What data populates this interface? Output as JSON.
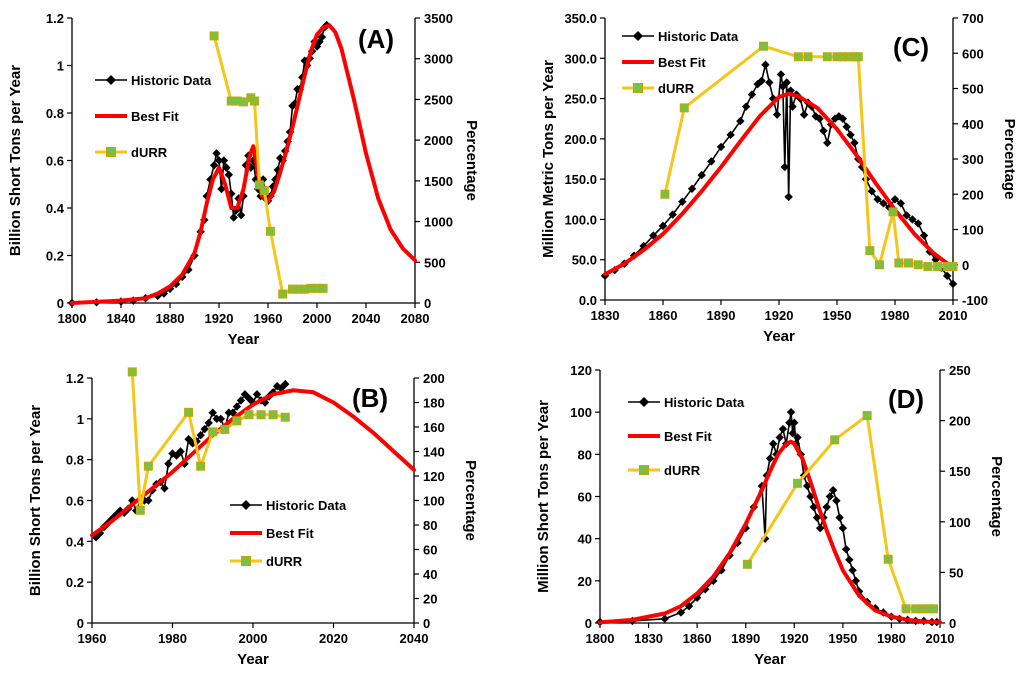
{
  "chart_data": [
    {
      "id": "A",
      "type": "line",
      "panel_label": "(A)",
      "xlabel": "Year",
      "ylabel": "Billion Short Tons per Year",
      "y2label": "Percentage",
      "xlim": [
        1800,
        2080
      ],
      "ylim": [
        0,
        1.2
      ],
      "y2lim": [
        0,
        3500
      ],
      "x_ticks": [
        1800,
        1840,
        1880,
        1920,
        1960,
        2000,
        2040,
        2080
      ],
      "y_ticks": [
        "0",
        "0.2",
        "0.4",
        "0.6",
        "0.8",
        "1",
        "1.2"
      ],
      "y2_ticks": [
        "0",
        "500",
        "1000",
        "1500",
        "2000",
        "2500",
        "3000",
        "3500"
      ],
      "legend": [
        "Historic Data",
        "Best Fit",
        "dURR"
      ],
      "legend_placement": "left-middle",
      "colors": {
        "historic": "#000000",
        "fit": "#ff0000",
        "durr": "#f5c518",
        "durr_marker": "#7ac143"
      },
      "series": [
        {
          "name": "Historic Data",
          "axis": "left",
          "x": [
            1800,
            1820,
            1840,
            1850,
            1860,
            1870,
            1875,
            1880,
            1885,
            1890,
            1895,
            1900,
            1905,
            1908,
            1910,
            1913,
            1916,
            1918,
            1920,
            1922,
            1924,
            1926,
            1928,
            1930,
            1932,
            1934,
            1936,
            1938,
            1940,
            1942,
            1944,
            1946,
            1948,
            1950,
            1952,
            1954,
            1956,
            1958,
            1960,
            1962,
            1964,
            1966,
            1968,
            1970,
            1972,
            1974,
            1976,
            1978,
            1980,
            1982,
            1984,
            1986,
            1988,
            1990,
            1992,
            1994,
            1996,
            1998,
            2000,
            2002,
            2004,
            2006,
            2008
          ],
          "y": [
            0.0,
            0.003,
            0.006,
            0.01,
            0.02,
            0.03,
            0.04,
            0.06,
            0.08,
            0.11,
            0.14,
            0.2,
            0.3,
            0.35,
            0.45,
            0.52,
            0.58,
            0.63,
            0.6,
            0.48,
            0.6,
            0.57,
            0.54,
            0.46,
            0.36,
            0.39,
            0.44,
            0.37,
            0.45,
            0.58,
            0.62,
            0.57,
            0.6,
            0.52,
            0.48,
            0.45,
            0.52,
            0.44,
            0.43,
            0.45,
            0.49,
            0.52,
            0.56,
            0.61,
            0.6,
            0.64,
            0.68,
            0.72,
            0.83,
            0.84,
            0.9,
            0.9,
            0.95,
            1.02,
            1.0,
            1.03,
            1.06,
            1.1,
            1.08,
            1.1,
            1.12,
            1.16,
            1.17
          ]
        },
        {
          "name": "Best Fit",
          "axis": "left",
          "x": [
            1800,
            1820,
            1840,
            1860,
            1870,
            1880,
            1890,
            1900,
            1905,
            1910,
            1915,
            1920,
            1925,
            1930,
            1935,
            1940,
            1945,
            1948,
            1950,
            1955,
            1960,
            1965,
            1970,
            1975,
            1980,
            1985,
            1990,
            1995,
            2000,
            2005,
            2010,
            2015,
            2020,
            2030,
            2040,
            2050,
            2060,
            2070,
            2080
          ],
          "y": [
            0.0,
            0.005,
            0.01,
            0.02,
            0.04,
            0.07,
            0.12,
            0.21,
            0.3,
            0.42,
            0.52,
            0.57,
            0.5,
            0.4,
            0.4,
            0.48,
            0.62,
            0.66,
            0.6,
            0.45,
            0.43,
            0.47,
            0.55,
            0.64,
            0.74,
            0.85,
            0.96,
            1.06,
            1.13,
            1.16,
            1.17,
            1.14,
            1.07,
            0.86,
            0.63,
            0.44,
            0.31,
            0.23,
            0.18
          ]
        },
        {
          "name": "dURR",
          "axis": "right",
          "x": [
            1916,
            1930,
            1935,
            1940,
            1946,
            1949,
            1953,
            1957,
            1962,
            1972,
            1980,
            1985,
            1990,
            1995,
            2000,
            2005
          ],
          "y": [
            3280,
            2480,
            2480,
            2470,
            2520,
            2480,
            1450,
            1380,
            880,
            110,
            170,
            170,
            170,
            180,
            180,
            180
          ]
        }
      ]
    },
    {
      "id": "B",
      "type": "line",
      "panel_label": "(B)",
      "xlabel": "Year",
      "ylabel": "Billion Short Tons per Year",
      "y2label": "Percentage",
      "xlim": [
        1960,
        2040
      ],
      "ylim": [
        0,
        1.2
      ],
      "y2lim": [
        0,
        200
      ],
      "x_ticks": [
        1960,
        1980,
        2000,
        2020,
        2040
      ],
      "y_ticks": [
        "0",
        "0.2",
        "0.4",
        "0.6",
        "0.8",
        "1",
        "1.2"
      ],
      "y2_ticks": [
        "0",
        "20",
        "40",
        "60",
        "80",
        "100",
        "120",
        "140",
        "160",
        "180",
        "200"
      ],
      "legend": [
        "Historic Data",
        "Best Fit",
        "dURR"
      ],
      "legend_placement": "bottom-center",
      "colors": {
        "historic": "#000000",
        "fit": "#ff0000",
        "durr": "#f5c518",
        "durr_marker": "#7ac143"
      },
      "series": [
        {
          "name": "Historic Data",
          "axis": "left",
          "x": [
            1961,
            1962,
            1963,
            1964,
            1965,
            1966,
            1967,
            1968,
            1969,
            1970,
            1971,
            1972,
            1973,
            1974,
            1975,
            1976,
            1977,
            1978,
            1979,
            1980,
            1981,
            1982,
            1983,
            1984,
            1985,
            1986,
            1987,
            1988,
            1989,
            1990,
            1991,
            1992,
            1993,
            1994,
            1995,
            1996,
            1997,
            1998,
            1999,
            2000,
            2001,
            2002,
            2003,
            2004,
            2005,
            2006,
            2007,
            2008
          ],
          "y": [
            0.42,
            0.44,
            0.47,
            0.49,
            0.51,
            0.53,
            0.55,
            0.54,
            0.56,
            0.6,
            0.55,
            0.6,
            0.6,
            0.6,
            0.65,
            0.68,
            0.69,
            0.66,
            0.78,
            0.83,
            0.82,
            0.84,
            0.78,
            0.9,
            0.88,
            0.89,
            0.92,
            0.95,
            0.98,
            1.03,
            1.0,
            1.0,
            0.95,
            1.03,
            1.03,
            1.06,
            1.09,
            1.12,
            1.1,
            1.08,
            1.12,
            1.09,
            1.08,
            1.11,
            1.13,
            1.16,
            1.15,
            1.17
          ]
        },
        {
          "name": "Best Fit",
          "axis": "left",
          "x": [
            1960,
            1965,
            1970,
            1975,
            1980,
            1985,
            1990,
            1995,
            2000,
            2005,
            2010,
            2015,
            2020,
            2025,
            2030,
            2035,
            2040
          ],
          "y": [
            0.43,
            0.5,
            0.58,
            0.66,
            0.74,
            0.83,
            0.92,
            1.0,
            1.07,
            1.12,
            1.14,
            1.13,
            1.08,
            1.01,
            0.93,
            0.84,
            0.75
          ]
        },
        {
          "name": "dURR",
          "axis": "right",
          "x": [
            1970,
            1972,
            1974,
            1984,
            1987,
            1990,
            1993,
            1996,
            1999,
            2002,
            2005,
            2008
          ],
          "y": [
            205,
            92,
            128,
            172,
            128,
            156,
            158,
            165,
            170,
            170,
            170,
            168
          ]
        }
      ]
    },
    {
      "id": "C",
      "type": "line",
      "panel_label": "(C)",
      "xlabel": "Year",
      "ylabel": "Million Metric Tons per Year",
      "y2label": "Percentage",
      "xlim": [
        1830,
        2010
      ],
      "ylim": [
        0,
        350
      ],
      "y2lim": [
        -100,
        700
      ],
      "x_ticks": [
        1830,
        1860,
        1890,
        1920,
        1950,
        1980,
        2010
      ],
      "y_ticks": [
        "0.0",
        "50.0",
        "100.0",
        "150.0",
        "200.0",
        "250.0",
        "300.0",
        "350.0"
      ],
      "y2_ticks": [
        "-100",
        "0",
        "100",
        "200",
        "300",
        "400",
        "500",
        "600",
        "700"
      ],
      "legend": [
        "Historic Data",
        "Best Fit",
        "dURR"
      ],
      "legend_placement": "top-left",
      "colors": {
        "historic": "#000000",
        "fit": "#ff0000",
        "durr": "#f5c518",
        "durr_marker": "#7ac143"
      },
      "series": [
        {
          "name": "Historic Data",
          "axis": "left",
          "x": [
            1830,
            1835,
            1840,
            1845,
            1850,
            1855,
            1860,
            1865,
            1870,
            1875,
            1880,
            1885,
            1890,
            1895,
            1900,
            1903,
            1906,
            1909,
            1911,
            1913,
            1915,
            1917,
            1919,
            1921,
            1922,
            1923,
            1924,
            1925,
            1926,
            1927,
            1929,
            1931,
            1933,
            1935,
            1937,
            1939,
            1941,
            1943,
            1945,
            1947,
            1949,
            1951,
            1953,
            1955,
            1957,
            1959,
            1961,
            1963,
            1965,
            1968,
            1971,
            1974,
            1977,
            1980,
            1983,
            1986,
            1989,
            1992,
            1995,
            1998,
            2001,
            2004,
            2007,
            2010
          ],
          "y": [
            30,
            37,
            45,
            55,
            67,
            80,
            92,
            106,
            122,
            138,
            155,
            172,
            190,
            205,
            222,
            240,
            255,
            268,
            272,
            292,
            270,
            250,
            230,
            280,
            265,
            165,
            270,
            128,
            260,
            240,
            255,
            250,
            230,
            245,
            240,
            228,
            225,
            210,
            195,
            218,
            225,
            228,
            225,
            215,
            205,
            195,
            175,
            165,
            150,
            135,
            125,
            120,
            115,
            125,
            120,
            105,
            100,
            95,
            80,
            60,
            50,
            40,
            30,
            20
          ]
        },
        {
          "name": "Best Fit",
          "axis": "left",
          "x": [
            1830,
            1840,
            1850,
            1860,
            1870,
            1880,
            1890,
            1900,
            1910,
            1920,
            1925,
            1930,
            1940,
            1950,
            1960,
            1970,
            1980,
            1990,
            2000,
            2010
          ],
          "y": [
            32,
            45,
            62,
            82,
            107,
            135,
            165,
            197,
            228,
            252,
            256,
            253,
            238,
            212,
            180,
            145,
            112,
            82,
            58,
            40
          ]
        },
        {
          "name": "dURR",
          "axis": "right",
          "x": [
            1861,
            1871,
            1912,
            1930,
            1935,
            1945,
            1950,
            1953,
            1956,
            1959,
            1961,
            1967,
            1972,
            1979,
            1982,
            1987,
            1992,
            1997,
            2002,
            2007,
            2010
          ],
          "y": [
            200,
            445,
            620,
            590,
            590,
            590,
            590,
            590,
            590,
            590,
            590,
            40,
            0,
            150,
            5,
            5,
            0,
            -5,
            -5,
            -5,
            -5
          ]
        }
      ]
    },
    {
      "id": "D",
      "type": "line",
      "panel_label": "(D)",
      "xlabel": "Year",
      "ylabel": "Million Short Tons per Year",
      "y2label": "Percentage",
      "xlim": [
        1800,
        2010
      ],
      "ylim": [
        0,
        120
      ],
      "y2lim": [
        0,
        250
      ],
      "x_ticks": [
        1800,
        1830,
        1860,
        1890,
        1920,
        1950,
        1980,
        2010
      ],
      "y_ticks": [
        "0",
        "20",
        "40",
        "60",
        "80",
        "100",
        "120"
      ],
      "y2_ticks": [
        "0",
        "50",
        "100",
        "150",
        "200",
        "250"
      ],
      "legend": [
        "Historic Data",
        "Best Fit",
        "dURR"
      ],
      "legend_placement": "top-left",
      "colors": {
        "historic": "#000000",
        "fit": "#ff0000",
        "durr": "#f5c518",
        "durr_marker": "#7ac143"
      },
      "series": [
        {
          "name": "Historic Data",
          "axis": "left",
          "x": [
            1800,
            1820,
            1840,
            1850,
            1855,
            1860,
            1865,
            1870,
            1875,
            1880,
            1885,
            1890,
            1895,
            1900,
            1902,
            1903,
            1905,
            1907,
            1909,
            1911,
            1913,
            1915,
            1917,
            1918,
            1919,
            1920,
            1921,
            1922,
            1924,
            1926,
            1928,
            1930,
            1932,
            1934,
            1936,
            1938,
            1940,
            1942,
            1944,
            1946,
            1948,
            1950,
            1952,
            1954,
            1956,
            1958,
            1960,
            1965,
            1970,
            1975,
            1980,
            1985,
            1990,
            1995,
            2000,
            2005,
            2008
          ],
          "y": [
            0.5,
            1,
            2,
            5,
            8,
            12,
            16,
            20,
            25,
            32,
            38,
            45,
            55,
            65,
            40,
            70,
            78,
            85,
            80,
            88,
            92,
            85,
            95,
            100,
            90,
            95,
            85,
            88,
            80,
            70,
            65,
            60,
            55,
            50,
            45,
            50,
            55,
            60,
            63,
            58,
            50,
            45,
            35,
            30,
            25,
            20,
            15,
            10,
            7,
            5,
            3,
            2,
            1.5,
            1,
            1,
            0.5,
            0.5
          ]
        },
        {
          "name": "Best Fit",
          "axis": "left",
          "x": [
            1800,
            1820,
            1840,
            1850,
            1860,
            1870,
            1880,
            1890,
            1900,
            1905,
            1910,
            1915,
            1918,
            1920,
            1925,
            1930,
            1935,
            1940,
            1945,
            1950,
            1960,
            1970,
            1980,
            1990,
            2000,
            2010
          ],
          "y": [
            0.3,
            1.5,
            4.5,
            8,
            14,
            22,
            33,
            47,
            63,
            72,
            80,
            85,
            86,
            85,
            78,
            67,
            55,
            44,
            34,
            25,
            13,
            6,
            3,
            1.5,
            0.7,
            0.3
          ]
        },
        {
          "name": "dURR",
          "axis": "right",
          "x": [
            1891,
            1922,
            1945,
            1965,
            1978,
            1989,
            1995,
            1999,
            2003,
            2006
          ],
          "y": [
            58,
            138,
            181,
            205,
            63,
            14,
            14,
            14,
            14,
            14
          ]
        }
      ]
    }
  ]
}
